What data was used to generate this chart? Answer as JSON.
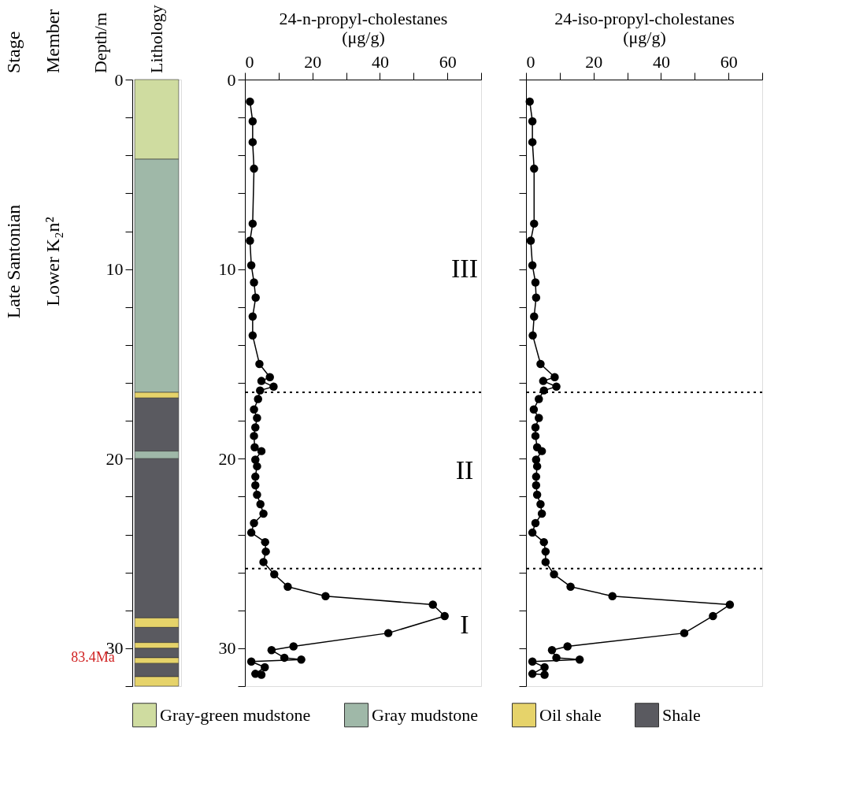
{
  "chart_data": [
    {
      "type": "bar",
      "stacked": true,
      "categories": [
        null
      ],
      "ylabel": "Depth/m",
      "legend": "bottom",
      "ylim": [
        32,
        0
      ],
      "yticks": [
        0,
        {
          "value": 2,
          "label": null
        },
        {
          "value": 4,
          "label": null
        },
        {
          "value": 6,
          "label": null
        },
        {
          "value": 8,
          "label": null
        },
        10,
        {
          "value": 12,
          "label": null
        },
        {
          "value": 14,
          "label": null
        },
        {
          "value": 16,
          "label": null
        },
        {
          "value": 18,
          "label": null
        },
        20,
        {
          "value": 22,
          "label": null
        },
        {
          "value": 24,
          "label": null
        },
        {
          "value": 26,
          "label": null
        },
        {
          "value": 28,
          "label": null
        },
        30,
        {
          "value": 32,
          "label": null
        }
      ],
      "annotations": [
        "Stage",
        "Member",
        "Late Santonian",
        "Lower K₂n²",
        "83.4Ma",
        "Lithology"
      ],
      "series": [
        {
          "name": "Gray-green mudstone",
          "color": "#cfdca0",
          "values": [
            4.2
          ]
        },
        {
          "name": "Gray mudstone",
          "color": "#9fb8a8",
          "values": [
            12.3
          ]
        },
        {
          "name": "Oil shale",
          "color": "#e6d36a",
          "values": [
            0.3
          ]
        },
        {
          "name": "Shale",
          "color": "#5a5a60",
          "values": [
            2.8
          ]
        },
        {
          "color": "#9fb8a8",
          "values": [
            0.4
          ]
        },
        {
          "color": "#5a5a60",
          "values": [
            8.4
          ]
        },
        {
          "color": "#e6d36a",
          "values": [
            0.5
          ]
        },
        {
          "color": "#5a5a60",
          "values": [
            0.8
          ]
        },
        {
          "color": "#e6d36a",
          "values": [
            0.3
          ]
        },
        {
          "color": "#5a5a60",
          "values": [
            0.5
          ]
        },
        {
          "color": "#e6d36a",
          "values": [
            0.3
          ]
        },
        {
          "color": "#5a5a60",
          "values": [
            0.7
          ]
        },
        {
          "color": "#e6d36a",
          "values": [
            0.5
          ]
        }
      ]
    },
    {
      "type": "line",
      "marker": "circle",
      "line_style": "solid",
      "xlabel": "24-n-propyl-cholestanes (μg/g)",
      "xlim": [
        0,
        70
      ],
      "xticks": [
        0,
        {
          "value": 10,
          "label": null
        },
        20,
        {
          "value": 30,
          "label": null
        },
        40,
        {
          "value": 50,
          "label": null
        },
        60,
        {
          "value": 70,
          "label": null
        }
      ],
      "ylim": [
        32,
        0
      ],
      "yticks": [
        0,
        {
          "value": 2,
          "label": null
        },
        {
          "value": 4,
          "label": null
        },
        {
          "value": 6,
          "label": null
        },
        {
          "value": 8,
          "label": null
        },
        10,
        {
          "value": 12,
          "label": null
        },
        {
          "value": 14,
          "label": null
        },
        {
          "value": 16,
          "label": null
        },
        {
          "value": 18,
          "label": null
        },
        20,
        {
          "value": 22,
          "label": null
        },
        {
          "value": 24,
          "label": null
        },
        {
          "value": 26,
          "label": null
        },
        {
          "value": 28,
          "label": null
        },
        30,
        {
          "value": 32,
          "label": null
        }
      ],
      "ref_lines": [
        {
          "axis": "y",
          "value": 16.5,
          "line_style": "dotted",
          "color": "#000000"
        },
        {
          "axis": "y",
          "value": 25.8,
          "line_style": "dotted",
          "color": "#000000"
        }
      ],
      "annotations": [
        "III",
        "II",
        "I"
      ],
      "series": [
        {
          "color": "#000000",
          "x": [
            1.5,
            2.3,
            2.3,
            2.7,
            2.3,
            1.5,
            1.9,
            2.7,
            3.2,
            2.3,
            2.3,
            4.3,
            7.4,
            4.9,
            8.5,
            4.5,
            3.9,
            2.7,
            3.6,
            3.1,
            2.7,
            2.9,
            4.9,
            3.1,
            3.6,
            3.1,
            3.1,
            3.6,
            4.6,
            5.5,
            2.7,
            1.9,
            6.0,
            6.2,
            5.5,
            8.7,
            12.7,
            23.9,
            55.7,
            59.2,
            42.5,
            14.4,
            7.9,
            11.7,
            16.7,
            1.9,
            5.9,
            3.1,
            4.9
          ],
          "values": [
            1.16,
            2.2,
            3.3,
            4.7,
            7.6,
            8.5,
            9.8,
            10.7,
            11.5,
            12.5,
            13.5,
            15.0,
            15.7,
            15.9,
            16.2,
            16.4,
            16.85,
            17.4,
            17.85,
            18.35,
            18.8,
            19.4,
            19.6,
            20.05,
            20.4,
            20.95,
            21.4,
            21.9,
            22.4,
            22.9,
            23.4,
            23.9,
            24.4,
            24.9,
            25.45,
            26.1,
            26.75,
            27.25,
            27.7,
            28.3,
            29.2,
            29.9,
            30.1,
            30.5,
            30.6,
            30.7,
            31.0,
            31.35,
            31.4
          ]
        }
      ]
    },
    {
      "type": "line",
      "marker": "circle",
      "line_style": "solid",
      "xlabel": "24-iso-propyl-cholestanes (μg/g)",
      "xlim": [
        0,
        70
      ],
      "tick_labels": "x",
      "xticks": [
        0,
        {
          "value": 10,
          "label": null
        },
        20,
        {
          "value": 30,
          "label": null
        },
        40,
        {
          "value": 50,
          "label": null
        },
        60,
        {
          "value": 70,
          "label": null
        }
      ],
      "ylim": [
        32,
        0
      ],
      "yticks": [
        0,
        {
          "value": 2,
          "label": null
        },
        {
          "value": 4,
          "label": null
        },
        {
          "value": 6,
          "label": null
        },
        {
          "value": 8,
          "label": null
        },
        {
          "value": 10,
          "label": null
        },
        {
          "value": 12,
          "label": null
        },
        {
          "value": 14,
          "label": null
        },
        {
          "value": 16,
          "label": null
        },
        {
          "value": 18,
          "label": null
        },
        {
          "value": 20,
          "label": null
        },
        {
          "value": 22,
          "label": null
        },
        {
          "value": 24,
          "label": null
        },
        {
          "value": 26,
          "label": null
        },
        {
          "value": 28,
          "label": null
        },
        {
          "value": 30,
          "label": null
        },
        {
          "value": 32,
          "label": null
        }
      ],
      "ref_lines": [
        {
          "axis": "y",
          "value": 16.5,
          "line_style": "dotted",
          "color": "#000000"
        },
        {
          "axis": "y",
          "value": 25.8,
          "line_style": "dotted",
          "color": "#000000"
        }
      ],
      "series": [
        {
          "color": "#000000",
          "x": [
            1.1,
            1.9,
            1.9,
            2.4,
            2.4,
            1.4,
            1.9,
            2.8,
            3.0,
            2.4,
            2.0,
            4.3,
            8.5,
            5.1,
            9.0,
            5.3,
            3.8,
            2.3,
            3.8,
            2.8,
            2.8,
            3.3,
            4.7,
            3.0,
            3.3,
            3.0,
            3.0,
            3.3,
            4.3,
            4.7,
            2.8,
            1.9,
            5.3,
            5.8,
            5.8,
            8.3,
            13.2,
            25.6,
            60.4,
            55.4,
            46.9,
            12.3,
            7.7,
            9.0,
            15.9,
            1.9,
            5.5,
            1.9,
            5.5
          ],
          "values": [
            1.16,
            2.2,
            3.3,
            4.7,
            7.6,
            8.5,
            9.8,
            10.7,
            11.5,
            12.5,
            13.5,
            15.0,
            15.7,
            15.9,
            16.2,
            16.4,
            16.85,
            17.4,
            17.85,
            18.35,
            18.8,
            19.4,
            19.6,
            20.05,
            20.4,
            20.95,
            21.4,
            21.9,
            22.4,
            22.9,
            23.4,
            23.9,
            24.4,
            24.9,
            25.45,
            26.1,
            26.75,
            27.25,
            27.7,
            28.3,
            29.2,
            29.9,
            30.1,
            30.5,
            30.6,
            30.7,
            31.0,
            31.35,
            31.4
          ]
        }
      ]
    }
  ]
}
